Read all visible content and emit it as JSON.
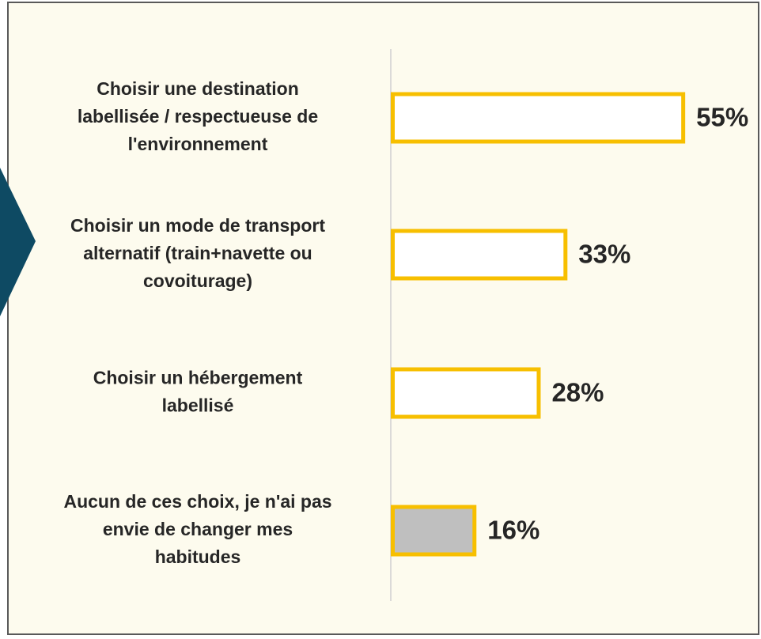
{
  "chart_data": {
    "type": "barh",
    "categories": [
      [
        "Choisir une destination",
        "labellisée / respectueuse de",
        "l'environnement"
      ],
      [
        "Choisir un mode de transport",
        "alternatif (train+navette ou",
        "covoiturage)"
      ],
      [
        "Choisir un hébergement",
        "labellisé"
      ],
      [
        "Aucun de ces choix, je n'ai pas",
        "envie de changer mes",
        "habitudes"
      ]
    ],
    "values": [
      55,
      33,
      28,
      16
    ],
    "value_labels": [
      "55%",
      "33%",
      "28%",
      "16%"
    ],
    "colors": [
      "#ffffff",
      "#ffffff",
      "#ffffff",
      "#bfbfbf"
    ],
    "edge_color": "#f7bf00",
    "xlim": [
      0,
      60
    ]
  }
}
